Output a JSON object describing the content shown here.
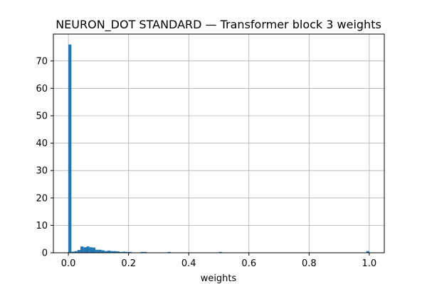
{
  "chart_data": {
    "type": "bar",
    "title": "NEURON_DOT STANDARD — Transformer block 3 weights",
    "xlabel": "weights",
    "ylabel": "",
    "xlim": [
      -0.05,
      1.05
    ],
    "ylim": [
      0,
      79.8
    ],
    "grid": true,
    "bar_color": "#1f77b4",
    "bin_width": 0.01,
    "x_ticks": [
      {
        "value": 0.0,
        "label": "0.0"
      },
      {
        "value": 0.2,
        "label": "0.2"
      },
      {
        "value": 0.4,
        "label": "0.4"
      },
      {
        "value": 0.6,
        "label": "0.6"
      },
      {
        "value": 0.8,
        "label": "0.8"
      },
      {
        "value": 1.0,
        "label": "1.0"
      }
    ],
    "y_ticks": [
      {
        "value": 0,
        "label": "0"
      },
      {
        "value": 10,
        "label": "10"
      },
      {
        "value": 20,
        "label": "20"
      },
      {
        "value": 30,
        "label": "30"
      },
      {
        "value": 40,
        "label": "40"
      },
      {
        "value": 50,
        "label": "50"
      },
      {
        "value": 60,
        "label": "60"
      },
      {
        "value": 70,
        "label": "70"
      }
    ],
    "bins": [
      {
        "start": 0.0,
        "count": 76
      },
      {
        "start": 0.01,
        "count": 0.4
      },
      {
        "start": 0.02,
        "count": 0.6
      },
      {
        "start": 0.03,
        "count": 1.0
      },
      {
        "start": 0.04,
        "count": 2.3
      },
      {
        "start": 0.05,
        "count": 2.0
      },
      {
        "start": 0.06,
        "count": 2.3
      },
      {
        "start": 0.07,
        "count": 2.0
      },
      {
        "start": 0.08,
        "count": 1.9
      },
      {
        "start": 0.09,
        "count": 1.1
      },
      {
        "start": 0.1,
        "count": 1.1
      },
      {
        "start": 0.11,
        "count": 0.9
      },
      {
        "start": 0.12,
        "count": 0.6
      },
      {
        "start": 0.13,
        "count": 0.8
      },
      {
        "start": 0.14,
        "count": 0.6
      },
      {
        "start": 0.15,
        "count": 0.6
      },
      {
        "start": 0.16,
        "count": 0.5
      },
      {
        "start": 0.17,
        "count": 0.3
      },
      {
        "start": 0.18,
        "count": 0.4
      },
      {
        "start": 0.19,
        "count": 0.3
      },
      {
        "start": 0.2,
        "count": 0.3
      },
      {
        "start": 0.24,
        "count": 0.3
      },
      {
        "start": 0.25,
        "count": 0.3
      },
      {
        "start": 0.33,
        "count": 0.3
      },
      {
        "start": 0.5,
        "count": 0.3
      },
      {
        "start": 0.99,
        "count": 0.6
      }
    ]
  }
}
